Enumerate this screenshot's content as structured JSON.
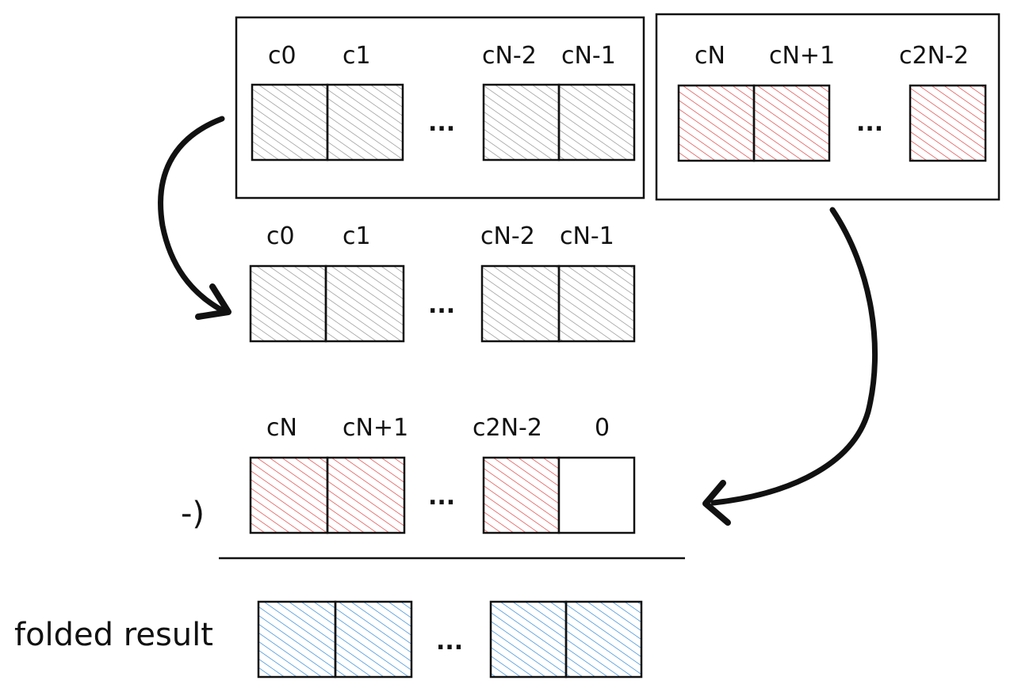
{
  "colors": {
    "gray": "#8a8a8a",
    "red": "#e03131",
    "blue": "#1c7ed6",
    "ink": "#111111"
  },
  "source_group_low": {
    "labels": [
      "c0",
      "c1",
      "cN-2",
      "cN-1"
    ],
    "ellipsis": "..."
  },
  "source_group_high": {
    "labels": [
      "cN",
      "cN+1",
      "c2N-2"
    ],
    "ellipsis": "..."
  },
  "row_low_copy": {
    "labels": [
      "c0",
      "c1",
      "cN-2",
      "cN-1"
    ],
    "ellipsis": "..."
  },
  "row_high_shifted": {
    "labels": [
      "cN",
      "cN+1",
      "c2N-2",
      "0"
    ],
    "ellipsis": "...",
    "operator": "-)"
  },
  "row_result": {
    "label": "folded result",
    "ellipsis": "..."
  }
}
